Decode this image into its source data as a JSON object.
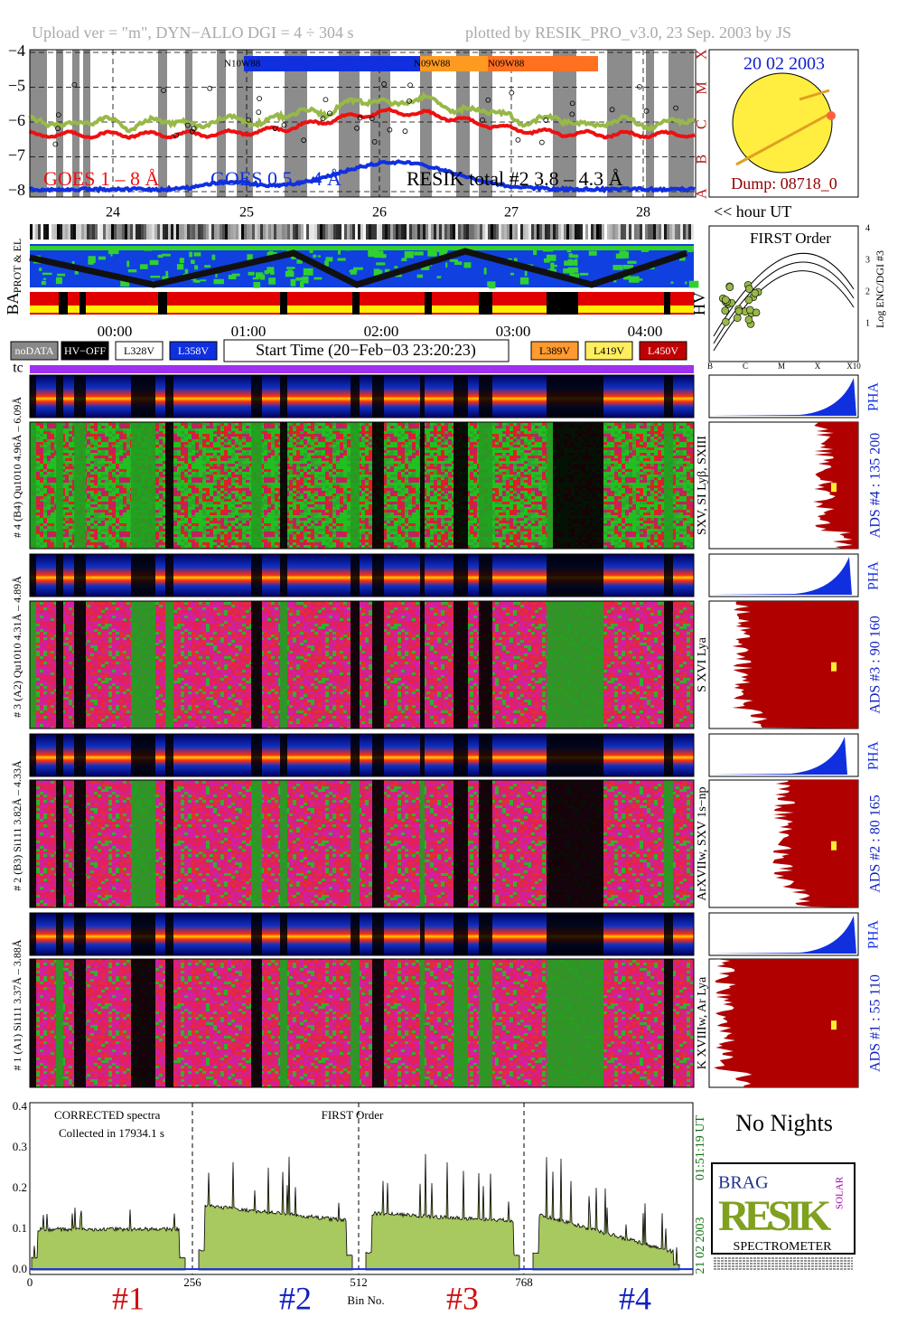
{
  "header": {
    "upload": "Upload ver = \"m\", DYN−ALLO DGI =   4 ÷ 304 s",
    "plotted": "plotted by RESIK_PRO_v3.0, 23 Sep. 2003 by JS"
  },
  "goes": {
    "yticks": [
      "−4",
      "−5",
      "−6",
      "−7",
      "−8"
    ],
    "classes": [
      "X",
      "M",
      "C",
      "B",
      "A"
    ],
    "regions": [
      "N10W88",
      "N09W88",
      "N09W88"
    ],
    "legend": [
      "GOES 1 – 8 Å",
      "GOES 0.5 – 4 Å",
      "RESIK total #2  3.8 – 4.3 Å"
    ],
    "days": [
      "24",
      "25",
      "26",
      "27",
      "28"
    ],
    "hour_note": "<< hour UT"
  },
  "sun": {
    "date": "20 02 2003",
    "dump": "Dump: 08718_0"
  },
  "strips": {
    "prot": "PROT & EL",
    "ba": "BA",
    "hv": "HV"
  },
  "first_order": {
    "title": "FIRST Order",
    "yticks": [
      "1",
      "2",
      "3",
      "4"
    ],
    "ylabel": "Log ENC/DGI #3",
    "xticks": [
      "B",
      "C",
      "M",
      "X",
      "X10"
    ]
  },
  "hours": [
    "00:00",
    "01:00",
    "02:00",
    "03:00",
    "04:00"
  ],
  "legend": {
    "left": [
      "noDATA",
      "HV−OFF",
      "L328V",
      "L358V"
    ],
    "start": "Start Time (20−Feb−03 23:20:23)",
    "right": [
      "L389V",
      "L419V",
      "L450V"
    ]
  },
  "tc": "tc",
  "channels": [
    {
      "label": "# 4 (B4) Qu1010 4.96Å – 6.09Å",
      "pha": "PHA",
      "lines": "SXV, SI Lyβ, SXIII",
      "ads": "ADS #4 :   135 200"
    },
    {
      "label": "# 3 (A2) Qu1010 4.31Å – 4.89Å",
      "pha": "PHA",
      "lines": "S XVI Lya",
      "ads": "ADS #3 :   90 160"
    },
    {
      "label": "# 2 (B3) Si111 3.82Å – 4.33Å",
      "pha": "PHA",
      "lines": "ArXVIIw, SXV 1s−np",
      "ads": "ADS #2 :   80 165"
    },
    {
      "label": "# 1 (A1) Si111 3.37Å – 3.88Å",
      "pha": "PHA",
      "lines": "K XVIIIw, Ar Lya",
      "ads": "ADS #1 :   55 110"
    }
  ],
  "spectrum": {
    "note1": "CORRECTED spectra",
    "note2": "Collected in 17934.1 s",
    "title": "FIRST Order",
    "yticks": [
      "0.0",
      "0.1",
      "0.2",
      "0.3",
      "0.4"
    ],
    "xticks": [
      "0",
      "256",
      "512",
      "768"
    ],
    "xlabel": "Bin No.",
    "sections": [
      "#1",
      "#2",
      "#3",
      "#4"
    ],
    "time": "01:51:19 UT",
    "date": "21 02 2003"
  },
  "no_nights": "No Nights",
  "logo": {
    "top": "BRAG",
    "main": "RESIK",
    "side": "SOLAR",
    "bottom": "SPECTROMETER"
  }
}
